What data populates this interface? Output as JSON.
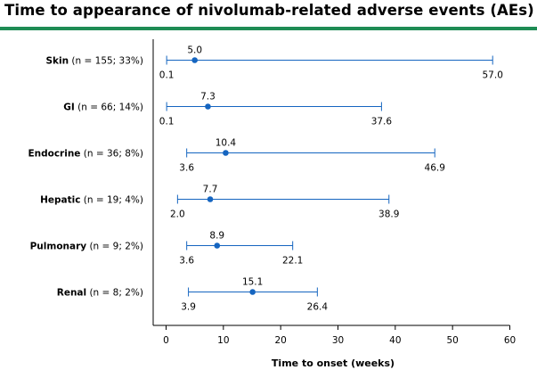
{
  "chart_data": {
    "type": "range-dot",
    "title": "Time to appearance of nivolumab-related adverse events (AEs)",
    "xlabel": "Time to onset (weeks)",
    "xlim": [
      0,
      60
    ],
    "xticks": [
      0,
      10,
      20,
      30,
      40,
      50,
      60
    ],
    "colors": {
      "accent": "#1e8c54",
      "series": "#1565c0",
      "axis": "#000000"
    },
    "categories": [
      {
        "name": "Skin",
        "detail": "(n = 155; 33%)",
        "median": 5.0,
        "min": 0.1,
        "max": 57.0
      },
      {
        "name": "GI",
        "detail": "(n = 66; 14%)",
        "median": 7.3,
        "min": 0.1,
        "max": 37.6
      },
      {
        "name": "Endocrine",
        "detail": "(n = 36; 8%)",
        "median": 10.4,
        "min": 3.6,
        "max": 46.9
      },
      {
        "name": "Hepatic",
        "detail": "(n = 19; 4%)",
        "median": 7.7,
        "min": 2.0,
        "max": 38.9
      },
      {
        "name": "Pulmonary",
        "detail": "(n = 9; 2%)",
        "median": 8.9,
        "min": 3.6,
        "max": 22.1
      },
      {
        "name": "Renal",
        "detail": "(n = 8; 2%)",
        "median": 15.1,
        "min": 3.9,
        "max": 26.4
      }
    ]
  }
}
